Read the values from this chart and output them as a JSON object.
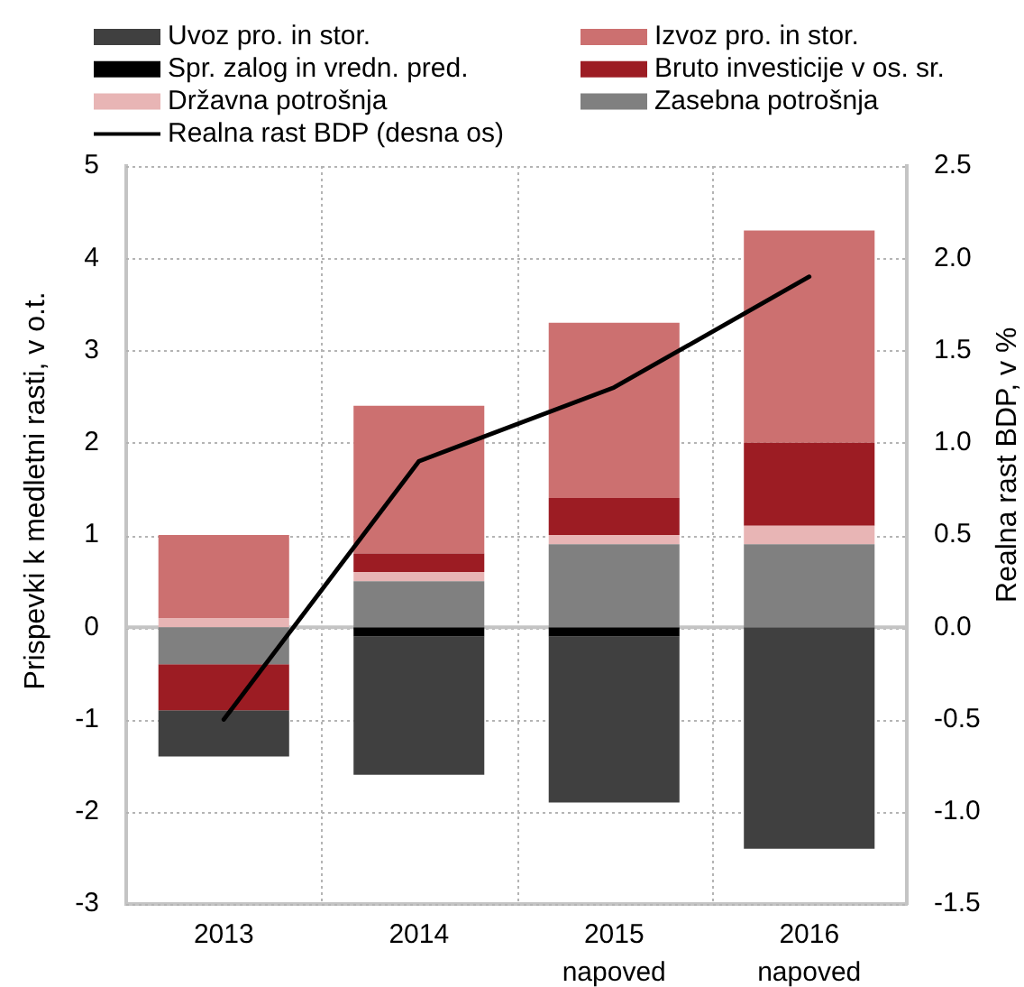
{
  "chart_data": {
    "type": "bar",
    "stacked": true,
    "categories": [
      "2013",
      "2014",
      "2015\nnapoved",
      "2016\nnapoved"
    ],
    "series": [
      {
        "name": "Zasebna potrošnja",
        "color": "#808080",
        "values": [
          -0.4,
          0.5,
          0.9,
          0.9
        ]
      },
      {
        "name": "Državna potrošnja",
        "color": "#e8b5b5",
        "values": [
          0.1,
          0.1,
          0.1,
          0.2
        ]
      },
      {
        "name": "Spr. zalog in vredn. pred.",
        "color": "#000000",
        "values": [
          0,
          -0.1,
          -0.1,
          0
        ]
      },
      {
        "name": "Bruto investicije v os. sr.",
        "color": "#9c1c23",
        "values": [
          -0.5,
          0.2,
          0.4,
          0.9
        ]
      },
      {
        "name": "Izvoz pro. in stor.",
        "color": "#cc7070",
        "values": [
          0.9,
          1.6,
          1.9,
          2.3
        ]
      },
      {
        "name": "Uvoz pro. in stor.",
        "color": "#404040",
        "values": [
          -0.5,
          -1.5,
          -1.8,
          -2.4
        ]
      },
      {
        "name": "Realna rast BDP (desna os)",
        "type": "line",
        "axis": "y2",
        "color": "#000000",
        "values": [
          -0.5,
          0.9,
          1.3,
          1.9
        ]
      }
    ],
    "ylabel": "Prispevki k medletni rasti, v o.t.",
    "y2label": "Realna rast BDP, v %",
    "ylim": [
      -3,
      5
    ],
    "yticks": [
      -3,
      -2,
      -1,
      0,
      1,
      2,
      3,
      4,
      5
    ],
    "y2lim": [
      -1.5,
      2.5
    ],
    "y2ticks": [
      -1.5,
      {
        "value": -1,
        "label": "-1.0"
      },
      -0.5,
      {
        "value": 0,
        "label": "0.0"
      },
      0.5,
      {
        "value": 1,
        "label": "1.0"
      },
      1.5,
      {
        "value": 2,
        "label": "2.0"
      },
      2.5
    ],
    "grid": true,
    "legend": "top"
  }
}
